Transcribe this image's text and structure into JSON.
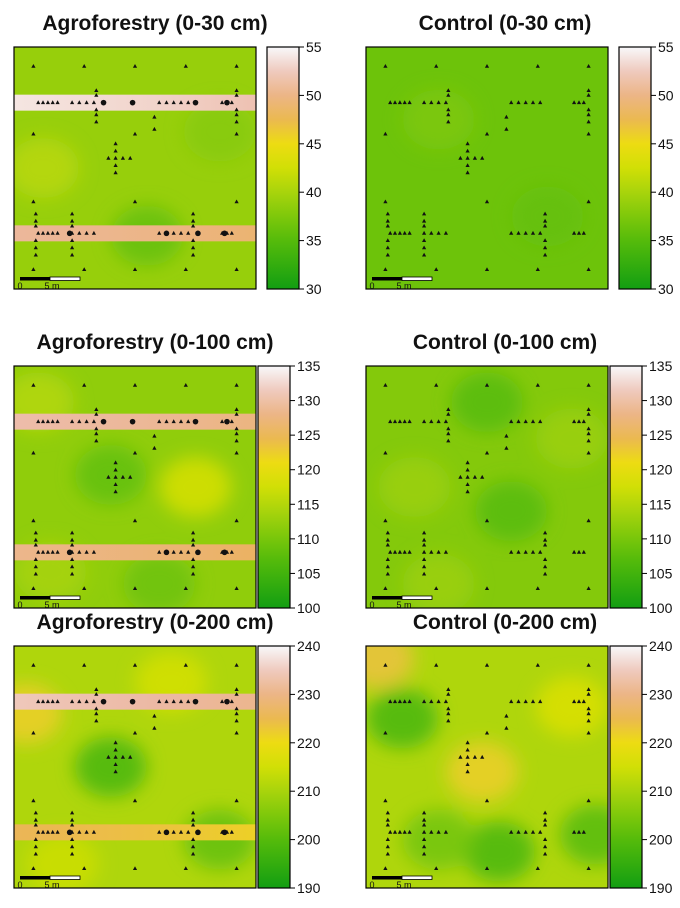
{
  "chart_data": [
    {
      "type": "heatmap",
      "title": "Agroforestry (0-30 cm)",
      "colorbar": {
        "ticks": [
          "55",
          "50",
          "45",
          "40",
          "35",
          "30"
        ],
        "min": 30,
        "max": 55
      },
      "scale_bar": {
        "start": "0",
        "end": "5 m"
      },
      "field_base": 39,
      "bands": [
        {
          "row": "upper",
          "value": 53
        },
        {
          "row": "lower",
          "value": 50
        }
      ],
      "blobs": [
        {
          "x": 0.55,
          "y": 0.78,
          "value": -3
        },
        {
          "x": 0.12,
          "y": 0.5,
          "value": 2
        },
        {
          "x": 0.85,
          "y": 0.35,
          "value": -1
        }
      ]
    },
    {
      "type": "heatmap",
      "title": "Control (0-30 cm)",
      "colorbar": {
        "ticks": [
          "55",
          "50",
          "45",
          "40",
          "35",
          "30"
        ],
        "min": 30,
        "max": 55
      },
      "scale_bar": {
        "start": "0",
        "end": "5 m"
      },
      "field_base": 36.5,
      "bands": [],
      "blobs": [
        {
          "x": 0.3,
          "y": 0.3,
          "value": 1
        },
        {
          "x": 0.75,
          "y": 0.7,
          "value": -0.5
        }
      ]
    },
    {
      "type": "heatmap",
      "title": "Agroforestry (0-100 cm)",
      "colorbar": {
        "ticks": [
          "135",
          "130",
          "125",
          "120",
          "115",
          "110",
          "105",
          "100"
        ],
        "min": 100,
        "max": 135
      },
      "scale_bar": {
        "start": "0",
        "end": "5 m"
      },
      "field_base": 112,
      "bands": [
        {
          "row": "upper",
          "value": 129
        },
        {
          "row": "lower",
          "value": 127
        }
      ],
      "blobs": [
        {
          "x": 0.75,
          "y": 0.5,
          "value": 6
        },
        {
          "x": 0.4,
          "y": 0.45,
          "value": -4
        },
        {
          "x": 0.1,
          "y": 0.15,
          "value": 3
        },
        {
          "x": 0.15,
          "y": 0.85,
          "value": 2
        },
        {
          "x": 0.6,
          "y": 0.9,
          "value": -3
        }
      ]
    },
    {
      "type": "heatmap",
      "title": "Control (0-100 cm)",
      "colorbar": {
        "ticks": [
          "135",
          "130",
          "125",
          "120",
          "115",
          "110",
          "105",
          "100"
        ],
        "min": 100,
        "max": 135
      },
      "scale_bar": {
        "start": "0",
        "end": "5 m"
      },
      "field_base": 111,
      "bands": [],
      "blobs": [
        {
          "x": 0.5,
          "y": 0.15,
          "value": -4
        },
        {
          "x": 0.6,
          "y": 0.6,
          "value": -4
        },
        {
          "x": 0.2,
          "y": 0.5,
          "value": 2
        },
        {
          "x": 0.85,
          "y": 0.3,
          "value": 2
        },
        {
          "x": 0.3,
          "y": 0.9,
          "value": 2
        }
      ]
    },
    {
      "type": "heatmap",
      "title": "Agroforestry (0-200 cm)",
      "colorbar": {
        "ticks": [
          "240",
          "230",
          "220",
          "210",
          "200",
          "190"
        ],
        "min": 185,
        "max": 240
      },
      "scale_bar": {
        "start": "0",
        "end": "5 m"
      },
      "field_base": 208,
      "bands": [
        {
          "row": "upper",
          "value": 232
        },
        {
          "row": "lower",
          "value": 222
        }
      ],
      "blobs": [
        {
          "x": 0.05,
          "y": 0.28,
          "value": 12
        },
        {
          "x": 0.4,
          "y": 0.5,
          "value": -14
        },
        {
          "x": 0.85,
          "y": 0.8,
          "value": -10
        },
        {
          "x": 0.65,
          "y": 0.15,
          "value": 5
        },
        {
          "x": 0.2,
          "y": 0.9,
          "value": 4
        }
      ]
    },
    {
      "type": "heatmap",
      "title": "Control (0-200 cm)",
      "colorbar": {
        "ticks": [
          "240",
          "230",
          "220",
          "210",
          "200",
          "190"
        ],
        "min": 185,
        "max": 240
      },
      "scale_bar": {
        "start": "0",
        "end": "5 m"
      },
      "field_base": 208,
      "bands": [],
      "blobs": [
        {
          "x": 0.05,
          "y": 0.05,
          "value": 14
        },
        {
          "x": 0.48,
          "y": 0.52,
          "value": 12
        },
        {
          "x": 0.15,
          "y": 0.3,
          "value": -14
        },
        {
          "x": 0.55,
          "y": 0.85,
          "value": -14
        },
        {
          "x": 0.95,
          "y": 0.78,
          "value": -12
        },
        {
          "x": 0.85,
          "y": 0.25,
          "value": 6
        },
        {
          "x": 0.3,
          "y": 0.8,
          "value": -8
        }
      ]
    }
  ]
}
